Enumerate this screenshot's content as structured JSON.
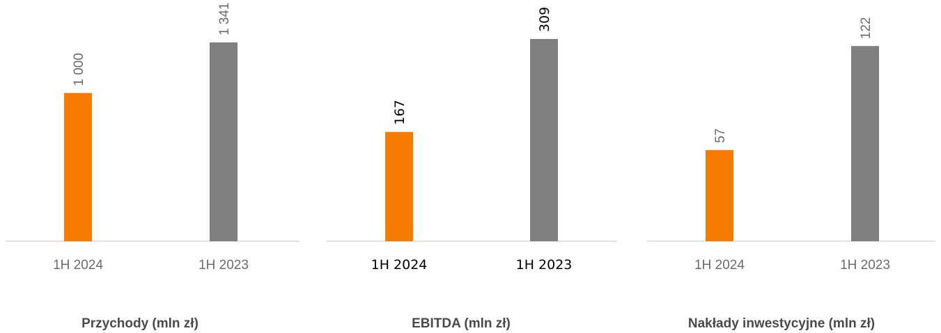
{
  "colors": {
    "current_period": "#f57c00",
    "previous_period": "#808080",
    "axis": "#d9d9d9"
  },
  "chart_data": [
    {
      "type": "bar",
      "title": "Przychody (mln zł)",
      "categories": [
        "1H 2024",
        "1H 2023"
      ],
      "values": [
        1000,
        1341
      ],
      "value_labels": [
        "1 000",
        "1 341"
      ],
      "bar_colors": [
        "#f57c00",
        "#808080"
      ],
      "text_style": "light",
      "ylim": [
        0,
        1360
      ],
      "grid": false,
      "legend": "none"
    },
    {
      "type": "bar",
      "title": "EBITDA (mln zł)",
      "categories": [
        "1H 2024",
        "1H 2023"
      ],
      "values": [
        167,
        309
      ],
      "value_labels": [
        "167",
        "309"
      ],
      "bar_colors": [
        "#f57c00",
        "#808080"
      ],
      "text_style": "dark",
      "ylim": [
        0,
        308
      ],
      "grid": false,
      "legend": "none"
    },
    {
      "type": "bar",
      "title": "Nakłady inwestycyjne (mln zł)",
      "categories": [
        "1H 2024",
        "1H 2023"
      ],
      "values": [
        57,
        122
      ],
      "value_labels": [
        "57",
        "122"
      ],
      "bar_colors": [
        "#f57c00",
        "#808080"
      ],
      "text_style": "light",
      "ylim": [
        0,
        126
      ],
      "grid": false,
      "legend": "none"
    }
  ]
}
